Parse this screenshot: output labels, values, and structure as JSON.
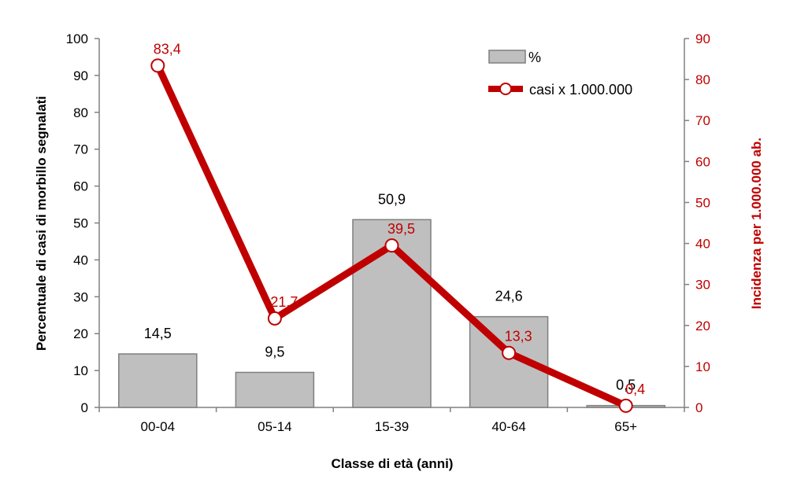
{
  "chart_data": {
    "type": "bar",
    "categories": [
      "00-04",
      "05-14",
      "15-39",
      "40-64",
      "65+"
    ],
    "series": [
      {
        "name": "%",
        "type": "bar",
        "axis": "left",
        "values": [
          14.5,
          9.5,
          50.9,
          24.6,
          0.5
        ],
        "labels": [
          "14,5",
          "9,5",
          "50,9",
          "24,6",
          "0,5"
        ],
        "color": "#bfbfbf",
        "border_color": "#7f7f7f"
      },
      {
        "name": "casi x 1.000.000",
        "type": "line",
        "axis": "right",
        "values": [
          83.4,
          21.7,
          39.5,
          13.3,
          0.4
        ],
        "labels": [
          "83,4",
          "21,7",
          "39,5",
          "13,3",
          "0,4"
        ],
        "color": "#c00000"
      }
    ],
    "xlabel": "Classe di età (anni)",
    "ylabel": "Percentuale di casi di morbillo segnalati",
    "y2label": "Incidenza per 1.000.000 ab.",
    "ylim": [
      0,
      100
    ],
    "y2lim": [
      0,
      90
    ],
    "yticks": [
      0,
      10,
      20,
      30,
      40,
      50,
      60,
      70,
      80,
      90,
      100
    ],
    "y2ticks": [
      0,
      10,
      20,
      30,
      40,
      50,
      60,
      70,
      80,
      90
    ],
    "grid": false,
    "legend_position": "top-right",
    "colors": {
      "right_axis": "#c00000",
      "bar_fill": "#bfbfbf",
      "bar_border": "#7f7f7f",
      "axis": "#808080"
    }
  }
}
